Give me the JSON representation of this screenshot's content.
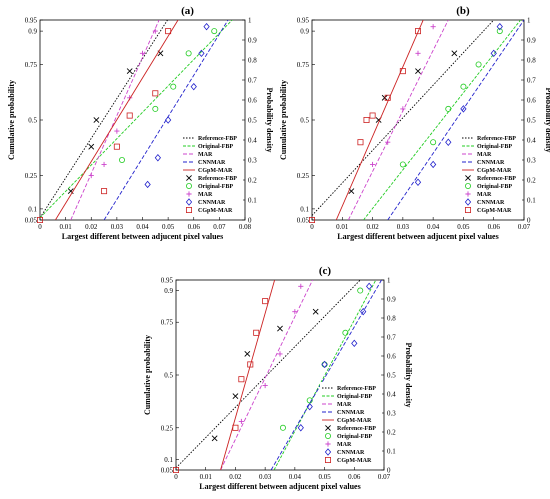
{
  "panels": [
    {
      "label": "(a)",
      "xlabel": "Largest different between adjucent pixel values",
      "ylabel_left": "Cumulative probability",
      "ylabel_right": "Probability density",
      "xticks": [
        "0",
        "0.01",
        "0.02",
        "0.03",
        "0.04",
        "0.05",
        "0.06",
        "0.07",
        "0.08"
      ],
      "xlim": [
        0,
        0.08
      ]
    },
    {
      "label": "(b)",
      "xlabel": "Largest different between adjucent pixel values",
      "ylabel_left": "Cumulative probability",
      "ylabel_right": "Probability density",
      "xticks": [
        "0",
        "0.01",
        "0.02",
        "0.03",
        "0.04",
        "0.05",
        "0.06",
        "0.07"
      ],
      "xlim": [
        0,
        0.07
      ]
    },
    {
      "label": "(c)",
      "xlabel": "Largest different between adjucent pixel values",
      "ylabel_left": "Cumulative probability",
      "ylabel_right": "Probability density",
      "xticks": [
        "0",
        "0.01",
        "0.02",
        "0.03",
        "0.04",
        "0.05",
        "0.06",
        "0.07"
      ],
      "xlim": [
        0,
        0.07
      ]
    }
  ],
  "shared": {
    "left_ticks": [
      "0.95",
      "0.9",
      "0.75",
      "0.5",
      "0.25",
      "0.1",
      "0.05"
    ],
    "right_ticks": [
      "0",
      "0.1",
      "0.2",
      "0.3",
      "0.4",
      "0.5",
      "0.6",
      "0.7",
      "0.8",
      "0.9",
      "1"
    ],
    "legend": [
      "Reference-FBP",
      "Original-FBP",
      "MAR",
      "CNNMAR",
      "CGpM-MAR",
      "Reference-FBP",
      "Original-FBP",
      "MAR",
      "CNNMAR",
      "CGpM-MAR"
    ]
  },
  "colors": {
    "Reference-FBP": "#000000",
    "Original-FBP": "#22cc22",
    "MAR": "#cc44cc",
    "CNNMAR": "#2222cc",
    "CGpM-MAR": "#cc2222"
  },
  "chart_data": [
    {
      "type": "scatter",
      "title": "(a)",
      "xlabel": "Largest different between adjucent pixel values",
      "ylabel": "Cumulative probability",
      "xlim": [
        0,
        0.08
      ],
      "series": [
        {
          "name": "Reference-FBP",
          "marker": "x",
          "points": [
            [
              0.012,
              0.18
            ],
            [
              0.02,
              0.38
            ],
            [
              0.022,
              0.5
            ],
            [
              0.035,
              0.72
            ],
            [
              0.047,
              0.8
            ]
          ],
          "fit": [
            [
              0.0,
              0.06
            ],
            [
              0.052,
              0.99
            ]
          ]
        },
        {
          "name": "Original-FBP",
          "marker": "circle",
          "points": [
            [
              0.032,
              0.32
            ],
            [
              0.045,
              0.55
            ],
            [
              0.052,
              0.65
            ],
            [
              0.058,
              0.8
            ],
            [
              0.068,
              0.9
            ]
          ],
          "fit": [
            [
              0.0,
              0.06
            ],
            [
              0.075,
              0.95
            ]
          ]
        },
        {
          "name": "MAR",
          "marker": "plus",
          "points": [
            [
              0.02,
              0.25
            ],
            [
              0.025,
              0.3
            ],
            [
              0.03,
              0.45
            ],
            [
              0.035,
              0.6
            ],
            [
              0.04,
              0.8
            ],
            [
              0.045,
              0.9
            ]
          ],
          "fit": [
            [
              0.012,
              0.05
            ],
            [
              0.048,
              0.99
            ]
          ]
        },
        {
          "name": "CNNMAR",
          "marker": "diamond",
          "points": [
            [
              0.042,
              0.21
            ],
            [
              0.046,
              0.33
            ],
            [
              0.05,
              0.5
            ],
            [
              0.06,
              0.65
            ],
            [
              0.063,
              0.8
            ],
            [
              0.065,
              0.92
            ]
          ],
          "fit": [
            [
              0.025,
              0.05
            ],
            [
              0.075,
              0.98
            ]
          ]
        },
        {
          "name": "CGpM-MAR",
          "marker": "square",
          "points": [
            [
              0.0,
              0.05
            ],
            [
              0.025,
              0.18
            ],
            [
              0.03,
              0.38
            ],
            [
              0.035,
              0.52
            ],
            [
              0.045,
              0.62
            ],
            [
              0.05,
              0.9
            ]
          ],
          "fit": [
            [
              0.006,
              0.05
            ],
            [
              0.056,
              0.99
            ]
          ]
        }
      ]
    },
    {
      "type": "scatter",
      "title": "(b)",
      "xlabel": "Largest different between adjucent pixel values",
      "ylabel": "Cumulative probability",
      "xlim": [
        0,
        0.07
      ],
      "series": [
        {
          "name": "Reference-FBP",
          "marker": "x",
          "points": [
            [
              0.013,
              0.18
            ],
            [
              0.022,
              0.5
            ],
            [
              0.024,
              0.6
            ],
            [
              0.035,
              0.72
            ],
            [
              0.047,
              0.8
            ]
          ],
          "fit": [
            [
              0.0,
              0.07
            ],
            [
              0.06,
              0.95
            ]
          ]
        },
        {
          "name": "Original-FBP",
          "marker": "circle",
          "points": [
            [
              0.03,
              0.3
            ],
            [
              0.04,
              0.4
            ],
            [
              0.045,
              0.55
            ],
            [
              0.05,
              0.65
            ],
            [
              0.055,
              0.75
            ],
            [
              0.062,
              0.9
            ]
          ],
          "fit": [
            [
              0.017,
              0.05
            ],
            [
              0.07,
              0.97
            ]
          ]
        },
        {
          "name": "MAR",
          "marker": "plus",
          "points": [
            [
              0.02,
              0.3
            ],
            [
              0.025,
              0.4
            ],
            [
              0.03,
              0.55
            ],
            [
              0.035,
              0.8
            ],
            [
              0.04,
              0.92
            ]
          ],
          "fit": [
            [
              0.012,
              0.05
            ],
            [
              0.045,
              0.95
            ]
          ]
        },
        {
          "name": "CNNMAR",
          "marker": "diamond",
          "points": [
            [
              0.035,
              0.22
            ],
            [
              0.04,
              0.3
            ],
            [
              0.045,
              0.4
            ],
            [
              0.05,
              0.55
            ],
            [
              0.06,
              0.8
            ],
            [
              0.062,
              0.92
            ]
          ],
          "fit": [
            [
              0.025,
              0.05
            ],
            [
              0.07,
              0.95
            ]
          ]
        },
        {
          "name": "CGpM-MAR",
          "marker": "square",
          "points": [
            [
              0.0,
              0.05
            ],
            [
              0.016,
              0.4
            ],
            [
              0.018,
              0.5
            ],
            [
              0.02,
              0.52
            ],
            [
              0.025,
              0.6
            ],
            [
              0.03,
              0.72
            ],
            [
              0.035,
              0.9
            ]
          ],
          "fit": [
            [
              0.008,
              0.05
            ],
            [
              0.038,
              0.99
            ]
          ]
        }
      ]
    },
    {
      "type": "scatter",
      "title": "(c)",
      "xlabel": "Largest different between adjucent pixel values",
      "ylabel": "Cumulative probability",
      "xlim": [
        0,
        0.07
      ],
      "series": [
        {
          "name": "Reference-FBP",
          "marker": "x",
          "points": [
            [
              0.013,
              0.2
            ],
            [
              0.02,
              0.4
            ],
            [
              0.024,
              0.6
            ],
            [
              0.035,
              0.72
            ],
            [
              0.047,
              0.8
            ]
          ],
          "fit": [
            [
              0.0,
              0.06
            ],
            [
              0.062,
              0.95
            ]
          ]
        },
        {
          "name": "Original-FBP",
          "marker": "circle",
          "points": [
            [
              0.036,
              0.25
            ],
            [
              0.045,
              0.38
            ],
            [
              0.05,
              0.55
            ],
            [
              0.057,
              0.7
            ],
            [
              0.062,
              0.9
            ]
          ],
          "fit": [
            [
              0.033,
              0.05
            ],
            [
              0.068,
              0.97
            ]
          ]
        },
        {
          "name": "MAR",
          "marker": "plus",
          "points": [
            [
              0.022,
              0.28
            ],
            [
              0.03,
              0.45
            ],
            [
              0.035,
              0.6
            ],
            [
              0.04,
              0.8
            ],
            [
              0.042,
              0.92
            ]
          ],
          "fit": [
            [
              0.015,
              0.05
            ],
            [
              0.047,
              0.98
            ]
          ]
        },
        {
          "name": "CNNMAR",
          "marker": "diamond",
          "points": [
            [
              0.042,
              0.25
            ],
            [
              0.045,
              0.35
            ],
            [
              0.05,
              0.55
            ],
            [
              0.06,
              0.65
            ],
            [
              0.063,
              0.8
            ],
            [
              0.065,
              0.92
            ]
          ],
          "fit": [
            [
              0.032,
              0.05
            ],
            [
              0.07,
              0.97
            ]
          ]
        },
        {
          "name": "CGpM-MAR",
          "marker": "square",
          "points": [
            [
              0.0,
              0.05
            ],
            [
              0.02,
              0.25
            ],
            [
              0.022,
              0.48
            ],
            [
              0.025,
              0.55
            ],
            [
              0.027,
              0.7
            ],
            [
              0.03,
              0.85
            ]
          ],
          "fit": [
            [
              0.015,
              0.05
            ],
            [
              0.034,
              0.99
            ]
          ]
        }
      ]
    }
  ]
}
